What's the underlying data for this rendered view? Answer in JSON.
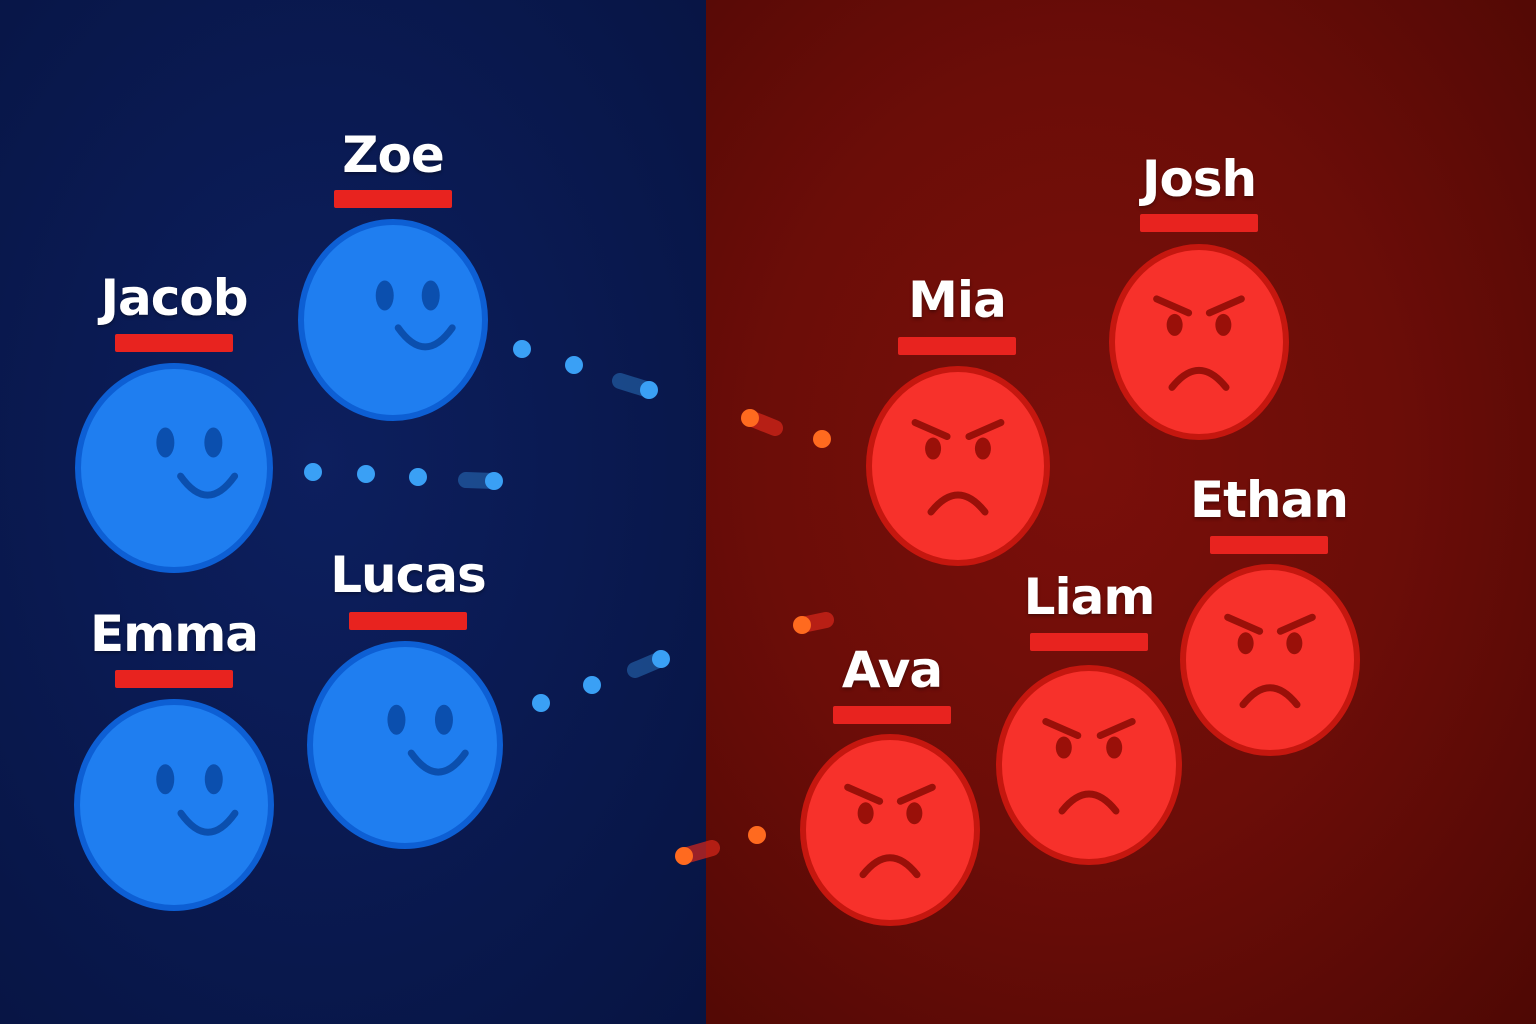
{
  "colors": {
    "blue_face": "#1f7ef0",
    "blue_outline": "#0d5fd4",
    "blue_feature": "#0b4fae",
    "red_face": "#f7312b",
    "red_outline": "#c5170f",
    "red_feature": "#9a1009",
    "underline": "#e8231f",
    "blue_dot": "#3aa0f5",
    "orange_dot": "#ff6a1f"
  },
  "blue_team": [
    {
      "name": "Zoe",
      "mood": "happy"
    },
    {
      "name": "Jacob",
      "mood": "happy"
    },
    {
      "name": "Lucas",
      "mood": "happy"
    },
    {
      "name": "Emma",
      "mood": "happy"
    }
  ],
  "red_team": [
    {
      "name": "Josh",
      "mood": "angry"
    },
    {
      "name": "Mia",
      "mood": "angry"
    },
    {
      "name": "Ethan",
      "mood": "angry"
    },
    {
      "name": "Liam",
      "mood": "angry"
    },
    {
      "name": "Ava",
      "mood": "angry"
    }
  ]
}
